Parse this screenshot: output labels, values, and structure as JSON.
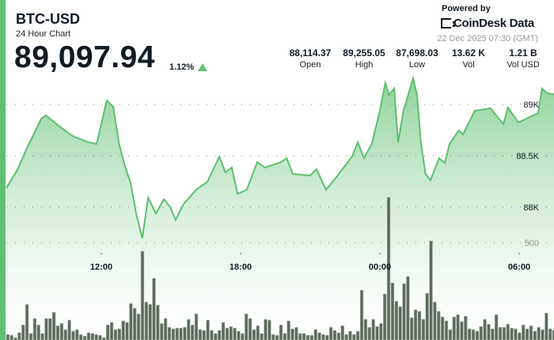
{
  "header": {
    "symbol": "BTC-USD",
    "subtitle": "24 Hour Chart",
    "price": "89,097.94",
    "change": "1.12%",
    "change_direction": "up"
  },
  "stats": [
    {
      "value": "88,114.37",
      "label": "Open"
    },
    {
      "value": "89,255.05",
      "label": "High"
    },
    {
      "value": "87,698.03",
      "label": "Low"
    },
    {
      "value": "13.62 K",
      "label": "Vol"
    },
    {
      "value": "1.21 B",
      "label": "Vol USD"
    }
  ],
  "branding": {
    "powered_by": "Powered by",
    "logo_text": "CoinDesk Data",
    "timestamp": "22 Dec 2025 07:30 (GMT)"
  },
  "colors": {
    "accent": "#5fbf72",
    "line": "#5cbf6c",
    "volume": "#5e6a5e"
  },
  "chart_data": {
    "type": "area",
    "x_ticks": [
      "12:00",
      "18:00",
      "00:00",
      "06:00"
    ],
    "price_ticks": [
      {
        "value": 89000,
        "label": "89K"
      },
      {
        "value": 88500,
        "label": "88.5K"
      },
      {
        "value": 88000,
        "label": "88K"
      }
    ],
    "volume_ticks": [
      {
        "value": 500,
        "label": "500"
      }
    ],
    "grid": true,
    "price_series": [
      [
        "07:55",
        88185
      ],
      [
        "08:23",
        88362
      ],
      [
        "08:50",
        88592
      ],
      [
        "09:25",
        88862
      ],
      [
        "09:37",
        88892
      ],
      [
        "10:12",
        88785
      ],
      [
        "10:46",
        88692
      ],
      [
        "11:27",
        88631
      ],
      [
        "11:48",
        88615
      ],
      [
        "12:14",
        89038
      ],
      [
        "12:31",
        88977
      ],
      [
        "12:45",
        88631
      ],
      [
        "13:01",
        88400
      ],
      [
        "13:16",
        88231
      ],
      [
        "13:30",
        87938
      ],
      [
        "13:46",
        87698
      ],
      [
        "14:01",
        88092
      ],
      [
        "14:21",
        87938
      ],
      [
        "14:42",
        88077
      ],
      [
        "14:58",
        88000
      ],
      [
        "15:12",
        87877
      ],
      [
        "15:33",
        88031
      ],
      [
        "16:05",
        88169
      ],
      [
        "16:34",
        88246
      ],
      [
        "17:05",
        88492
      ],
      [
        "17:21",
        88338
      ],
      [
        "17:37",
        88385
      ],
      [
        "17:52",
        88131
      ],
      [
        "18:16",
        88169
      ],
      [
        "18:43",
        88438
      ],
      [
        "19:03",
        88385
      ],
      [
        "19:44",
        88438
      ],
      [
        "19:59",
        88477
      ],
      [
        "20:15",
        88323
      ],
      [
        "21:00",
        88308
      ],
      [
        "21:16",
        88369
      ],
      [
        "21:41",
        88169
      ],
      [
        "22:14",
        88323
      ],
      [
        "22:48",
        88492
      ],
      [
        "23:03",
        88631
      ],
      [
        "23:19",
        88477
      ],
      [
        "23:39",
        88615
      ],
      [
        "00:00",
        88938
      ],
      [
        "00:14",
        89208
      ],
      [
        "00:24",
        89092
      ],
      [
        "00:37",
        89154
      ],
      [
        "00:47",
        88631
      ],
      [
        "01:01",
        88938
      ],
      [
        "01:16",
        89131
      ],
      [
        "01:26",
        89255
      ],
      [
        "01:36",
        89092
      ],
      [
        "01:46",
        88631
      ],
      [
        "01:58",
        88323
      ],
      [
        "02:11",
        88262
      ],
      [
        "02:33",
        88477
      ],
      [
        "02:48",
        88431
      ],
      [
        "03:00",
        88615
      ],
      [
        "03:24",
        88746
      ],
      [
        "03:35",
        88708
      ],
      [
        "04:05",
        88938
      ],
      [
        "04:46",
        88962
      ],
      [
        "05:19",
        88808
      ],
      [
        "05:31",
        88969
      ],
      [
        "05:58",
        88823
      ],
      [
        "06:32",
        88885
      ],
      [
        "06:49",
        88915
      ],
      [
        "06:59",
        89154
      ],
      [
        "07:13",
        89108
      ],
      [
        "07:30",
        89098
      ]
    ],
    "volume_interval_minutes": 10,
    "volume_start": "07:50",
    "volumes": [
      28,
      24,
      12,
      37,
      77,
      183,
      33,
      110,
      77,
      33,
      110,
      110,
      142,
      73,
      85,
      53,
      102,
      45,
      53,
      28,
      20,
      37,
      33,
      28,
      24,
      12,
      77,
      90,
      53,
      57,
      98,
      90,
      187,
      163,
      134,
      456,
      195,
      183,
      317,
      179,
      85,
      110,
      65,
      57,
      61,
      61,
      65,
      106,
      77,
      134,
      53,
      49,
      102,
      49,
      33,
      49,
      90,
      61,
      69,
      61,
      45,
      33,
      134,
      110,
      53,
      73,
      33,
      106,
      102,
      28,
      24,
      77,
      33,
      98,
      57,
      65,
      33,
      33,
      24,
      24,
      53,
      37,
      28,
      24,
      65,
      49,
      37,
      73,
      28,
      45,
      28,
      45,
      256,
      106,
      65,
      106,
      69,
      85,
      236,
      733,
      293,
      199,
      171,
      289,
      326,
      114,
      155,
      147,
      106,
      240,
      509,
      195,
      147,
      118,
      98,
      53,
      118,
      130,
      94,
      122,
      57,
      53,
      45,
      69,
      106,
      81,
      57,
      130,
      65,
      65,
      81,
      61,
      57,
      37,
      77,
      57,
      73,
      45,
      65,
      53,
      138,
      57,
      49
    ]
  }
}
